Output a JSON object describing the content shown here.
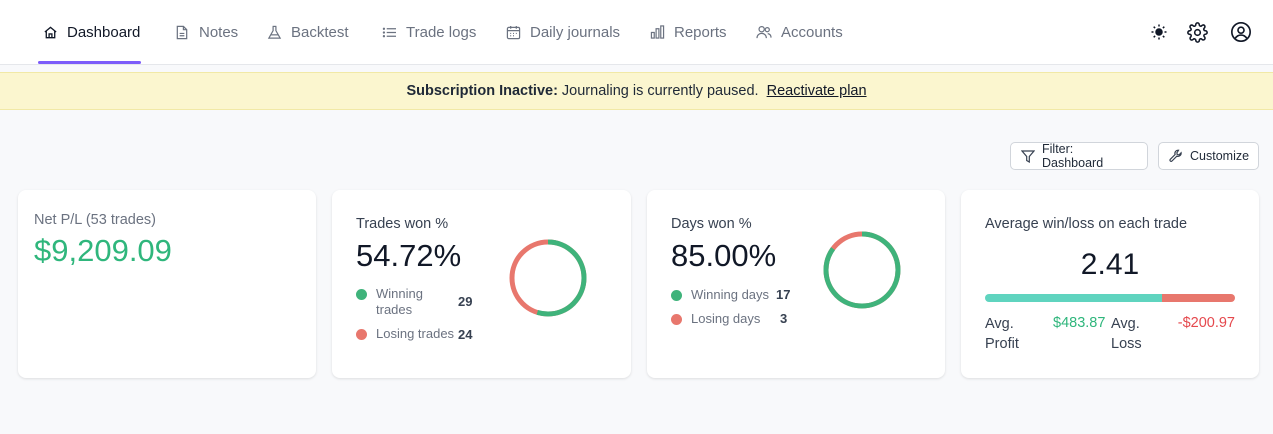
{
  "nav": {
    "items": [
      {
        "label": "Dashboard",
        "icon": "home-icon"
      },
      {
        "label": "Notes",
        "icon": "note-icon"
      },
      {
        "label": "Backtest",
        "icon": "flask-icon"
      },
      {
        "label": "Trade logs",
        "icon": "list-icon"
      },
      {
        "label": "Daily journals",
        "icon": "calendar-icon"
      },
      {
        "label": "Reports",
        "icon": "bar-chart-icon"
      },
      {
        "label": "Accounts",
        "icon": "users-icon"
      }
    ],
    "active": "Dashboard"
  },
  "banner": {
    "bold": "Subscription Inactive:",
    "text": "Journaling is currently paused.",
    "link": "Reactivate plan"
  },
  "toolbar": {
    "filter_label": "Filter: Dashboard",
    "customize_label": "Customize"
  },
  "cards": {
    "net_pl": {
      "title": "Net P/L (53 trades)",
      "value": "$9,209.09"
    },
    "trades_won": {
      "title": "Trades won %",
      "value": "54.72%",
      "win_label_1": "Winning",
      "win_label_2": "trades",
      "win_count": "29",
      "loss_label": "Losing trades",
      "loss_count": "24",
      "win_fraction": 0.5472
    },
    "days_won": {
      "title": "Days won %",
      "value": "85.00%",
      "win_label": "Winning days",
      "win_count": "17",
      "loss_label": "Losing days",
      "loss_count": "3",
      "win_fraction": 0.85
    },
    "avg_win_loss": {
      "title": "Average win/loss on each trade",
      "value": "2.41",
      "profit_label_1": "Avg.",
      "profit_label_2": "Profit",
      "profit_value": "$483.87",
      "loss_label_1": "Avg.",
      "loss_label_2": "Loss",
      "loss_value": "-$200.97",
      "win_fraction": 0.707
    }
  },
  "colors": {
    "accent": "#7c5cfa",
    "win": "#3fb37b",
    "loss": "#e8776d",
    "bar_win": "#5fd4bf",
    "bar_loss": "#e8776d",
    "net_pl": "#2fb67c",
    "loss_text": "#e5484d"
  }
}
